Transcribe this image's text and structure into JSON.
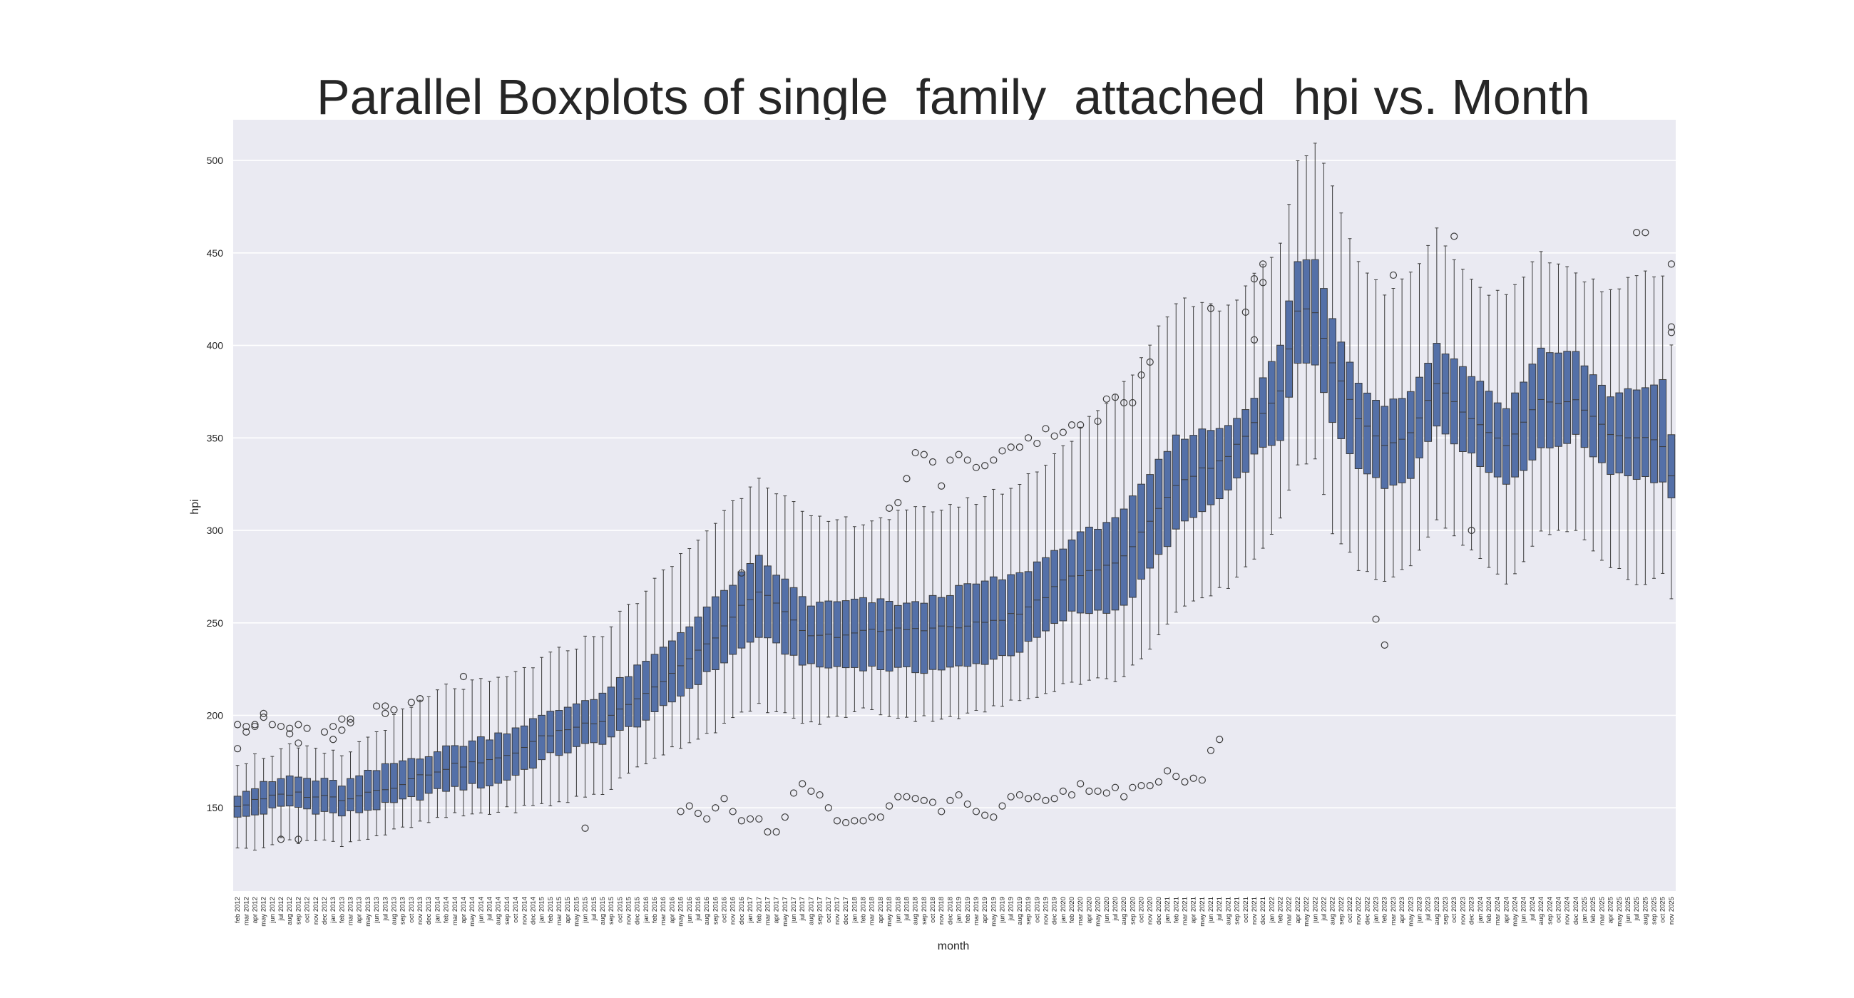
{
  "chart_data": {
    "type": "boxplot",
    "title": "Parallel Boxplots of single_family_attached_hpi vs. Month",
    "xlabel": "month",
    "ylabel": "hpi",
    "ylim": [
      105,
      522
    ],
    "yticks": [
      150,
      200,
      250,
      300,
      350,
      400,
      450,
      500
    ],
    "grid": true,
    "box_color": "#5470a8",
    "edge_color": "#3b3b3b",
    "plot_bg": "#eaeaf2",
    "anchors": [
      {
        "i": 0,
        "q1": 144,
        "med": 151,
        "q3": 158,
        "lo": 127,
        "hi": 175
      },
      {
        "i": 6,
        "q1": 151,
        "med": 158,
        "q3": 167,
        "lo": 133,
        "hi": 182
      },
      {
        "i": 12,
        "q1": 146,
        "med": 155,
        "q3": 163,
        "lo": 131,
        "hi": 178
      },
      {
        "i": 18,
        "q1": 152,
        "med": 162,
        "q3": 174,
        "lo": 137,
        "hi": 198
      },
      {
        "i": 24,
        "q1": 160,
        "med": 172,
        "q3": 182,
        "lo": 145,
        "hi": 215
      },
      {
        "i": 30,
        "q1": 163,
        "med": 176,
        "q3": 190,
        "lo": 148,
        "hi": 218
      },
      {
        "i": 36,
        "q1": 178,
        "med": 190,
        "q3": 201,
        "lo": 152,
        "hi": 232
      },
      {
        "i": 42,
        "q1": 186,
        "med": 198,
        "q3": 212,
        "lo": 158,
        "hi": 245
      },
      {
        "i": 48,
        "q1": 200,
        "med": 215,
        "q3": 232,
        "lo": 178,
        "hi": 272
      },
      {
        "i": 54,
        "q1": 222,
        "med": 238,
        "q3": 258,
        "lo": 190,
        "hi": 300
      },
      {
        "i": 60,
        "q1": 243,
        "med": 268,
        "q3": 285,
        "lo": 205,
        "hi": 330
      },
      {
        "i": 66,
        "q1": 226,
        "med": 242,
        "q3": 260,
        "lo": 195,
        "hi": 305
      },
      {
        "i": 72,
        "q1": 226,
        "med": 245,
        "q3": 262,
        "lo": 203,
        "hi": 305
      },
      {
        "i": 78,
        "q1": 224,
        "med": 247,
        "q3": 260,
        "lo": 198,
        "hi": 310
      },
      {
        "i": 84,
        "q1": 226,
        "med": 248,
        "q3": 270,
        "lo": 200,
        "hi": 315
      },
      {
        "i": 90,
        "q1": 235,
        "med": 255,
        "q3": 276,
        "lo": 208,
        "hi": 325
      },
      {
        "i": 96,
        "q1": 255,
        "med": 275,
        "q3": 295,
        "lo": 218,
        "hi": 350
      },
      {
        "i": 102,
        "q1": 258,
        "med": 285,
        "q3": 310,
        "lo": 220,
        "hi": 378
      },
      {
        "i": 108,
        "q1": 300,
        "med": 325,
        "q3": 350,
        "lo": 255,
        "hi": 425
      },
      {
        "i": 114,
        "q1": 320,
        "med": 340,
        "q3": 357,
        "lo": 270,
        "hi": 420
      },
      {
        "i": 117,
        "q1": 340,
        "med": 358,
        "q3": 372,
        "lo": 285,
        "hi": 440
      },
      {
        "i": 120,
        "q1": 350,
        "med": 375,
        "q3": 400,
        "lo": 305,
        "hi": 455
      },
      {
        "i": 122,
        "q1": 390,
        "med": 420,
        "q3": 446,
        "lo": 335,
        "hi": 500
      },
      {
        "i": 124,
        "q1": 389,
        "med": 417,
        "q3": 446,
        "lo": 340,
        "hi": 507
      },
      {
        "i": 126,
        "q1": 358,
        "med": 390,
        "q3": 415,
        "lo": 300,
        "hi": 487
      },
      {
        "i": 129,
        "q1": 335,
        "med": 360,
        "q3": 380,
        "lo": 280,
        "hi": 445
      },
      {
        "i": 132,
        "q1": 323,
        "med": 345,
        "q3": 368,
        "lo": 272,
        "hi": 430
      },
      {
        "i": 135,
        "q1": 330,
        "med": 352,
        "q3": 375,
        "lo": 280,
        "hi": 438
      },
      {
        "i": 138,
        "q1": 357,
        "med": 378,
        "q3": 400,
        "lo": 305,
        "hi": 462
      },
      {
        "i": 142,
        "q1": 340,
        "med": 360,
        "q3": 385,
        "lo": 290,
        "hi": 435
      },
      {
        "i": 146,
        "q1": 325,
        "med": 345,
        "q3": 365,
        "lo": 270,
        "hi": 425
      },
      {
        "i": 150,
        "q1": 343,
        "med": 370,
        "q3": 398,
        "lo": 298,
        "hi": 448
      },
      {
        "i": 154,
        "q1": 350,
        "med": 370,
        "q3": 395,
        "lo": 300,
        "hi": 440
      },
      {
        "i": 158,
        "q1": 332,
        "med": 352,
        "q3": 372,
        "lo": 280,
        "hi": 428
      },
      {
        "i": 162,
        "q1": 328,
        "med": 350,
        "q3": 378,
        "lo": 270,
        "hi": 440
      },
      {
        "i": 164,
        "q1": 326,
        "med": 345,
        "q3": 380,
        "lo": 275,
        "hi": 440
      },
      {
        "i": 165,
        "q1": 316,
        "med": 330,
        "q3": 352,
        "lo": 262,
        "hi": 400
      }
    ],
    "outliers": [
      {
        "i": 0,
        "y": [
          195,
          182
        ]
      },
      {
        "i": 1,
        "y": [
          191,
          194
        ]
      },
      {
        "i": 2,
        "y": [
          194,
          195
        ]
      },
      {
        "i": 3,
        "y": [
          199,
          201
        ]
      },
      {
        "i": 4,
        "y": [
          195
        ]
      },
      {
        "i": 5,
        "y": [
          133,
          194
        ]
      },
      {
        "i": 6,
        "y": [
          190,
          193
        ]
      },
      {
        "i": 7,
        "y": [
          133,
          185,
          195
        ]
      },
      {
        "i": 8,
        "y": [
          193
        ]
      },
      {
        "i": 10,
        "y": [
          191
        ]
      },
      {
        "i": 11,
        "y": [
          194,
          187
        ]
      },
      {
        "i": 12,
        "y": [
          198,
          192
        ]
      },
      {
        "i": 13,
        "y": [
          196,
          198
        ]
      },
      {
        "i": 16,
        "y": [
          205
        ]
      },
      {
        "i": 17,
        "y": [
          205,
          201
        ]
      },
      {
        "i": 18,
        "y": [
          203
        ]
      },
      {
        "i": 20,
        "y": [
          207
        ]
      },
      {
        "i": 21,
        "y": [
          209
        ]
      },
      {
        "i": 26,
        "y": [
          221
        ]
      },
      {
        "i": 40,
        "y": [
          139
        ]
      },
      {
        "i": 51,
        "y": [
          148
        ]
      },
      {
        "i": 52,
        "y": [
          151
        ]
      },
      {
        "i": 53,
        "y": [
          147
        ]
      },
      {
        "i": 54,
        "y": [
          144
        ]
      },
      {
        "i": 55,
        "y": [
          150
        ]
      },
      {
        "i": 56,
        "y": [
          155
        ]
      },
      {
        "i": 57,
        "y": [
          148
        ]
      },
      {
        "i": 58,
        "y": [
          143,
          277
        ]
      },
      {
        "i": 59,
        "y": [
          144
        ]
      },
      {
        "i": 60,
        "y": [
          144
        ]
      },
      {
        "i": 61,
        "y": [
          137
        ]
      },
      {
        "i": 62,
        "y": [
          137
        ]
      },
      {
        "i": 63,
        "y": [
          145
        ]
      },
      {
        "i": 64,
        "y": [
          158
        ]
      },
      {
        "i": 65,
        "y": [
          163
        ]
      },
      {
        "i": 66,
        "y": [
          159
        ]
      },
      {
        "i": 67,
        "y": [
          157
        ]
      },
      {
        "i": 68,
        "y": [
          150
        ]
      },
      {
        "i": 69,
        "y": [
          143
        ]
      },
      {
        "i": 70,
        "y": [
          142
        ]
      },
      {
        "i": 71,
        "y": [
          143
        ]
      },
      {
        "i": 72,
        "y": [
          143
        ]
      },
      {
        "i": 73,
        "y": [
          145
        ]
      },
      {
        "i": 74,
        "y": [
          145
        ]
      },
      {
        "i": 75,
        "y": [
          151,
          312
        ]
      },
      {
        "i": 76,
        "y": [
          156,
          315
        ]
      },
      {
        "i": 77,
        "y": [
          156,
          328
        ]
      },
      {
        "i": 78,
        "y": [
          155,
          342
        ]
      },
      {
        "i": 79,
        "y": [
          154,
          341
        ]
      },
      {
        "i": 80,
        "y": [
          153,
          337
        ]
      },
      {
        "i": 81,
        "y": [
          148,
          324
        ]
      },
      {
        "i": 82,
        "y": [
          154,
          338
        ]
      },
      {
        "i": 83,
        "y": [
          157,
          341
        ]
      },
      {
        "i": 84,
        "y": [
          152,
          338
        ]
      },
      {
        "i": 85,
        "y": [
          148,
          334
        ]
      },
      {
        "i": 86,
        "y": [
          146,
          335
        ]
      },
      {
        "i": 87,
        "y": [
          145,
          338
        ]
      },
      {
        "i": 88,
        "y": [
          151,
          343
        ]
      },
      {
        "i": 89,
        "y": [
          156,
          345
        ]
      },
      {
        "i": 90,
        "y": [
          157,
          345
        ]
      },
      {
        "i": 91,
        "y": [
          155,
          350
        ]
      },
      {
        "i": 92,
        "y": [
          156,
          347
        ]
      },
      {
        "i": 93,
        "y": [
          154,
          355
        ]
      },
      {
        "i": 94,
        "y": [
          155,
          351
        ]
      },
      {
        "i": 95,
        "y": [
          159,
          353
        ]
      },
      {
        "i": 96,
        "y": [
          157,
          357
        ]
      },
      {
        "i": 97,
        "y": [
          163,
          357
        ]
      },
      {
        "i": 98,
        "y": [
          159
        ]
      },
      {
        "i": 99,
        "y": [
          159,
          359
        ]
      },
      {
        "i": 100,
        "y": [
          158,
          371
        ]
      },
      {
        "i": 101,
        "y": [
          161,
          372
        ]
      },
      {
        "i": 102,
        "y": [
          156,
          369
        ]
      },
      {
        "i": 103,
        "y": [
          161,
          369
        ]
      },
      {
        "i": 104,
        "y": [
          162,
          384
        ]
      },
      {
        "i": 105,
        "y": [
          162,
          391
        ]
      },
      {
        "i": 106,
        "y": [
          164
        ]
      },
      {
        "i": 107,
        "y": [
          170
        ]
      },
      {
        "i": 108,
        "y": [
          167
        ]
      },
      {
        "i": 109,
        "y": [
          164
        ]
      },
      {
        "i": 110,
        "y": [
          166
        ]
      },
      {
        "i": 111,
        "y": [
          165
        ]
      },
      {
        "i": 112,
        "y": [
          181,
          420
        ]
      },
      {
        "i": 113,
        "y": [
          187
        ]
      },
      {
        "i": 116,
        "y": [
          418
        ]
      },
      {
        "i": 117,
        "y": [
          403,
          436
        ]
      },
      {
        "i": 118,
        "y": [
          434,
          444
        ]
      },
      {
        "i": 131,
        "y": [
          252
        ]
      },
      {
        "i": 132,
        "y": [
          238
        ]
      },
      {
        "i": 133,
        "y": [
          438
        ]
      },
      {
        "i": 140,
        "y": [
          459
        ]
      },
      {
        "i": 142,
        "y": [
          300
        ]
      },
      {
        "i": 161,
        "y": [
          461
        ]
      },
      {
        "i": 162,
        "y": [
          461
        ]
      },
      {
        "i": 165,
        "y": [
          444,
          410,
          407
        ]
      }
    ],
    "start_year": 2012,
    "start_month_index": 1,
    "month_abbrev": [
      "jan",
      "feb",
      "mar",
      "apr",
      "may",
      "jun",
      "jul",
      "aug",
      "sep",
      "oct",
      "nov",
      "dec"
    ]
  }
}
